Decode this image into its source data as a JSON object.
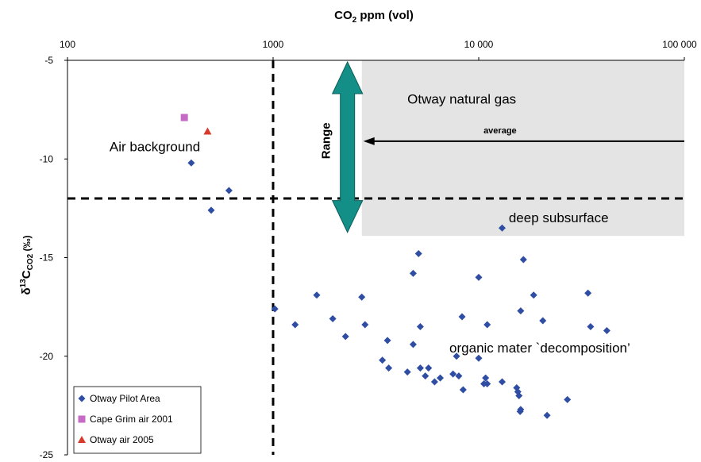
{
  "chart_data": {
    "type": "scatter",
    "xscale": "log",
    "xlim": [
      100,
      100000
    ],
    "ylim": [
      -25,
      -5
    ],
    "xlabel_main": "CO",
    "xlabel_sub": "2",
    "xlabel_rest": " ppm (vol)",
    "ylabel_delta": "δ",
    "ylabel_sup": "13",
    "ylabel_c": "C",
    "ylabel_sub": "CO2",
    "ylabel_unit": " (‰)",
    "x_ticks": [
      {
        "value": 100,
        "label": "100"
      },
      {
        "value": 1000,
        "label": "1000"
      },
      {
        "value": 10000,
        "label": "10 000"
      },
      {
        "value": 100000,
        "label": "100 000"
      }
    ],
    "y_ticks": [
      {
        "value": -5,
        "label": "-5"
      },
      {
        "value": -10,
        "label": "-10"
      },
      {
        "value": -15,
        "label": "-15"
      },
      {
        "value": -20,
        "label": "-20"
      },
      {
        "value": -25,
        "label": "-25"
      }
    ],
    "reference_lines": {
      "vertical_x": 1000,
      "horizontal_y": -12
    },
    "natural_gas_region": {
      "x_from": 2700,
      "x_to": 100000,
      "y_from": -5,
      "y_to": -13.9,
      "color": "#e4e4e4"
    },
    "range_arrow": {
      "x": 2300,
      "y_top": -5,
      "y_bottom": -13.8,
      "label": "Range",
      "color": "#138f87"
    },
    "average_arrow": {
      "y": -9.1,
      "x_from": 100000,
      "x_to": 2700,
      "label": "average"
    },
    "annotations": {
      "natural_gas": "Otway natural gas",
      "deep_subsurface": "deep subsurface",
      "air_background": "Air background",
      "organic": "organic mater `decomposition’"
    },
    "series": [
      {
        "name": "Otway Pilot Area",
        "marker": "diamond",
        "color": "#2f4ea3",
        "points": [
          [
            400,
            -10.2
          ],
          [
            610,
            -11.6
          ],
          [
            500,
            -12.6
          ],
          [
            13000,
            -13.5
          ],
          [
            5100,
            -14.8
          ],
          [
            16500,
            -15.1
          ],
          [
            4800,
            -15.8
          ],
          [
            10000,
            -16.0
          ],
          [
            1630,
            -16.9
          ],
          [
            18500,
            -16.9
          ],
          [
            34000,
            -16.8
          ],
          [
            2700,
            -17.0
          ],
          [
            1020,
            -17.6
          ],
          [
            16000,
            -17.7
          ],
          [
            8300,
            -18.0
          ],
          [
            1950,
            -18.1
          ],
          [
            1280,
            -18.4
          ],
          [
            2800,
            -18.4
          ],
          [
            5200,
            -18.5
          ],
          [
            11000,
            -18.4
          ],
          [
            20500,
            -18.2
          ],
          [
            35000,
            -18.5
          ],
          [
            42000,
            -18.7
          ],
          [
            2250,
            -19.0
          ],
          [
            3600,
            -19.2
          ],
          [
            4800,
            -19.4
          ],
          [
            10000,
            -20.1
          ],
          [
            7800,
            -20.0
          ],
          [
            3400,
            -20.2
          ],
          [
            3650,
            -20.6
          ],
          [
            4500,
            -20.8
          ],
          [
            5200,
            -20.6
          ],
          [
            5700,
            -20.6
          ],
          [
            5500,
            -21.0
          ],
          [
            7500,
            -20.9
          ],
          [
            8000,
            -21.0
          ],
          [
            6500,
            -21.1
          ],
          [
            6100,
            -21.3
          ],
          [
            10800,
            -21.1
          ],
          [
            11000,
            -21.4
          ],
          [
            10600,
            -21.4
          ],
          [
            13000,
            -21.3
          ],
          [
            8400,
            -21.7
          ],
          [
            15300,
            -21.6
          ],
          [
            15500,
            -21.8
          ],
          [
            15700,
            -22.0
          ],
          [
            27000,
            -22.2
          ],
          [
            16000,
            -22.7
          ],
          [
            15900,
            -22.8
          ],
          [
            21500,
            -23.0
          ]
        ]
      },
      {
        "name": "Cape Grim air 2001",
        "marker": "square",
        "color": "#c56bc5",
        "points": [
          [
            370,
            -7.9
          ]
        ]
      },
      {
        "name": "Otway air 2005",
        "marker": "triangle",
        "color": "#d83a2c",
        "points": [
          [
            480,
            -8.6
          ]
        ]
      }
    ],
    "legend_position": "bottom-left",
    "grid": false
  }
}
